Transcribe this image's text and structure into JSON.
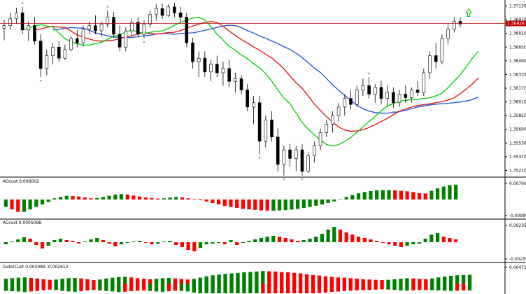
{
  "colors": {
    "bull": "#ffffff",
    "bear": "#000000",
    "jaw": "#1f4fe0",
    "teeth": "#e01010",
    "lips": "#00d000",
    "hist_up": "#008000",
    "hist_down": "#ff0000",
    "price_line": "#c00000",
    "fractal": "#a0a0a0",
    "signal": "#00c000"
  },
  "chart_data": [
    {
      "type": "candlestick",
      "title": "",
      "yaxis_ticks": [
        "1.37130",
        "1.36970",
        "1.36810",
        "1.36650",
        "1.36490",
        "1.36330",
        "1.36170",
        "1.36010",
        "1.35850",
        "1.35690",
        "1.35530",
        "1.35370",
        "1.35210"
      ],
      "ylim": [
        1.3514,
        1.372
      ],
      "current_price": "1.36926",
      "current_price_value": 1.36926,
      "candles": [
        [
          1.3687,
          1.3697,
          1.3673,
          1.369
        ],
        [
          1.369,
          1.3705,
          1.3685,
          1.3698
        ],
        [
          1.3698,
          1.3711,
          1.3692,
          1.3705
        ],
        [
          1.3705,
          1.3712,
          1.368,
          1.3685
        ],
        [
          1.3685,
          1.3695,
          1.3672,
          1.369
        ],
        [
          1.369,
          1.37,
          1.3668,
          1.3672
        ],
        [
          1.3672,
          1.368,
          1.363,
          1.364
        ],
        [
          1.364,
          1.3662,
          1.3632,
          1.3655
        ],
        [
          1.3655,
          1.367,
          1.3645,
          1.3665
        ],
        [
          1.3665,
          1.3672,
          1.3648,
          1.3652
        ],
        [
          1.3652,
          1.3668,
          1.365,
          1.3662
        ],
        [
          1.3662,
          1.3678,
          1.366,
          1.3675
        ],
        [
          1.3675,
          1.3685,
          1.3665,
          1.367
        ],
        [
          1.367,
          1.369,
          1.3666,
          1.3686
        ],
        [
          1.3686,
          1.3695,
          1.368,
          1.369
        ],
        [
          1.369,
          1.3702,
          1.368,
          1.3684
        ],
        [
          1.3684,
          1.3695,
          1.3677,
          1.3692
        ],
        [
          1.3692,
          1.3708,
          1.3688,
          1.37
        ],
        [
          1.37,
          1.3706,
          1.3676,
          1.368
        ],
        [
          1.368,
          1.369,
          1.366,
          1.3665
        ],
        [
          1.3665,
          1.3688,
          1.366,
          1.3684
        ],
        [
          1.3684,
          1.3698,
          1.3678,
          1.3694
        ],
        [
          1.3694,
          1.37,
          1.3676,
          1.368
        ],
        [
          1.368,
          1.3696,
          1.3675,
          1.3692
        ],
        [
          1.3692,
          1.3708,
          1.3688,
          1.3703
        ],
        [
          1.3703,
          1.3715,
          1.3696,
          1.371
        ],
        [
          1.371,
          1.3716,
          1.3698,
          1.3702
        ],
        [
          1.3702,
          1.3715,
          1.37,
          1.3712
        ],
        [
          1.3712,
          1.3717,
          1.37,
          1.3705
        ],
        [
          1.3705,
          1.3712,
          1.3694,
          1.37
        ],
        [
          1.37,
          1.3705,
          1.3665,
          1.367
        ],
        [
          1.367,
          1.3676,
          1.364,
          1.3648
        ],
        [
          1.3648,
          1.366,
          1.363,
          1.3652
        ],
        [
          1.3652,
          1.366,
          1.363,
          1.3636
        ],
        [
          1.3636,
          1.365,
          1.3625,
          1.3645
        ],
        [
          1.3645,
          1.3655,
          1.363,
          1.3635
        ],
        [
          1.3635,
          1.3648,
          1.362,
          1.364
        ],
        [
          1.364,
          1.365,
          1.3618,
          1.3625
        ],
        [
          1.3625,
          1.3635,
          1.3612,
          1.3628
        ],
        [
          1.3628,
          1.3632,
          1.361,
          1.3615
        ],
        [
          1.3615,
          1.3622,
          1.359,
          1.3595
        ],
        [
          1.3595,
          1.3608,
          1.3575,
          1.36
        ],
        [
          1.36,
          1.3608,
          1.354,
          1.3555
        ],
        [
          1.3555,
          1.3585,
          1.3548,
          1.358
        ],
        [
          1.358,
          1.359,
          1.3555,
          1.356
        ],
        [
          1.356,
          1.357,
          1.352,
          1.3528
        ],
        [
          1.3528,
          1.355,
          1.3515,
          1.3545
        ],
        [
          1.3545,
          1.3552,
          1.3525,
          1.3535
        ],
        [
          1.3535,
          1.355,
          1.352,
          1.3545
        ],
        [
          1.3545,
          1.3552,
          1.3515,
          1.352
        ],
        [
          1.352,
          1.3542,
          1.3518,
          1.3538
        ],
        [
          1.3538,
          1.3555,
          1.353,
          1.355
        ],
        [
          1.355,
          1.357,
          1.3545,
          1.3565
        ],
        [
          1.3565,
          1.358,
          1.356,
          1.3575
        ],
        [
          1.3575,
          1.359,
          1.3565,
          1.3585
        ],
        [
          1.3585,
          1.36,
          1.3578,
          1.3595
        ],
        [
          1.3595,
          1.361,
          1.3585,
          1.3605
        ],
        [
          1.3605,
          1.3615,
          1.3592,
          1.3598
        ],
        [
          1.3598,
          1.362,
          1.3595,
          1.3615
        ],
        [
          1.3615,
          1.3628,
          1.3608,
          1.362
        ],
        [
          1.362,
          1.363,
          1.3605,
          1.361
        ],
        [
          1.361,
          1.3622,
          1.36,
          1.3618
        ],
        [
          1.3618,
          1.3626,
          1.3598,
          1.3605
        ],
        [
          1.3605,
          1.362,
          1.3596,
          1.3612
        ],
        [
          1.3612,
          1.3618,
          1.3594,
          1.36
        ],
        [
          1.36,
          1.3615,
          1.3595,
          1.361
        ],
        [
          1.361,
          1.362,
          1.36,
          1.3606
        ],
        [
          1.3606,
          1.3618,
          1.36,
          1.3615
        ],
        [
          1.3615,
          1.3625,
          1.3608,
          1.3612
        ],
        [
          1.3612,
          1.364,
          1.3608,
          1.3635
        ],
        [
          1.3635,
          1.366,
          1.3628,
          1.3655
        ],
        [
          1.3655,
          1.367,
          1.364,
          1.3648
        ],
        [
          1.3648,
          1.368,
          1.3645,
          1.3675
        ],
        [
          1.3675,
          1.3692,
          1.3668,
          1.3686
        ],
        [
          1.3686,
          1.37,
          1.3682,
          1.3695
        ],
        [
          1.3695,
          1.37,
          1.3688,
          1.3692
        ]
      ],
      "fractals": "grey up/down arrows at swing highs and lows",
      "signal": "green up-arrow after the last candle"
    },
    {
      "type": "bar",
      "title": "AOcust 0.006002",
      "yaxis_ticks": [
        "0.007609",
        "-0.009994"
      ],
      "colors": "green = rising, red = falling",
      "values": [
        -3,
        -4,
        -5,
        -5,
        -4,
        -3,
        -2,
        -1,
        0.5,
        1,
        1.5,
        1.4,
        1.2,
        0.8,
        0.5,
        0.6,
        1.0,
        1.5,
        2.0,
        2.2,
        2.0,
        1.6,
        1.2,
        0.8,
        0.6,
        0.4,
        0.5,
        0.8,
        1.0,
        0.8,
        0.5,
        0.2,
        -0.3,
        -0.8,
        -1.4,
        -2.0,
        -2.6,
        -3.0,
        -3.4,
        -3.8,
        -4.0,
        -4.2,
        -4.4,
        -4.5,
        -4.5,
        -4.4,
        -4.3,
        -4.1,
        -3.8,
        -3.4,
        -3.0,
        -2.5,
        -2.0,
        -1.4,
        -0.8,
        0.2,
        1.0,
        1.8,
        2.5,
        3.0,
        3.4,
        3.7,
        3.8,
        3.8,
        3.7,
        3.5,
        3.3,
        3.0,
        2.6,
        2.4,
        3.5,
        4.5,
        5.2,
        5.8,
        6.0
      ]
    },
    {
      "type": "bar",
      "title": "ACcust 0.0005098",
      "yaxis_ticks": [
        "0.0023537",
        "-0.0025062"
      ],
      "colors": "green = rising, red = falling",
      "values": [
        -0.3,
        0.1,
        0.4,
        0.7,
        0.5,
        -0.4,
        -0.9,
        -0.5,
        0.3,
        0.5,
        0.3,
        0.2,
        -0.2,
        0.1,
        0.4,
        0.6,
        0.3,
        -0.2,
        -0.6,
        -0.3,
        -0.1,
        0.1,
        0.2,
        -0.1,
        -0.3,
        -0.2,
        0.1,
        0.2,
        -0.4,
        -0.7,
        -1.1,
        -1.3,
        -0.8,
        -0.3,
        -0.2,
        -0.1,
        -0.3,
        0.3,
        -0.4,
        -0.1,
        0.2,
        0.4,
        0.6,
        0.8,
        0.9,
        0.8,
        0.6,
        0.4,
        0.2,
        0.3,
        0.5,
        0.8,
        1.2,
        1.8,
        2.2,
        1.8,
        1.4,
        1.1,
        0.8,
        0.6,
        0.4,
        0.2,
        -0.1,
        -0.3,
        -0.5,
        -0.7,
        -0.5,
        -0.3,
        -0.2,
        0.5,
        1.1,
        1.3,
        0.8,
        0.6,
        0.4
      ]
    },
    {
      "type": "bar",
      "title": "GatorCust 0.003089 -0.002612",
      "yaxis_ticks": [
        "0.004712"
      ],
      "colors": "green = rising, red = falling",
      "upper": [
        1.8,
        2.0,
        2.2,
        2.3,
        2.1,
        1.9,
        1.6,
        1.4,
        1.5,
        1.8,
        2.0,
        2.1,
        1.9,
        1.6,
        1.3,
        1.5,
        1.9,
        2.2,
        2.4,
        2.5,
        2.3,
        2.0,
        1.8,
        1.6,
        1.8,
        2.0,
        2.1,
        1.9,
        1.7,
        1.5,
        1.7,
        2.2,
        2.7,
        3.1,
        3.4,
        3.6,
        3.8,
        4.0,
        4.2,
        4.3,
        4.5,
        4.7,
        4.6,
        4.5,
        4.3,
        4.2,
        4.0,
        3.8,
        3.5,
        3.2,
        3.0,
        2.7,
        2.5,
        2.3,
        2.2,
        2.0,
        1.8,
        1.6,
        1.5,
        1.4,
        1.3,
        1.4,
        1.6,
        1.8,
        2.0,
        1.9,
        1.7,
        1.6,
        1.9,
        2.3,
        2.6,
        2.9,
        3.1,
        3.2,
        3.3
      ],
      "lower": [
        -2.8,
        -2.9,
        -3.0,
        -3.2,
        -3.0,
        -2.8,
        -2.5,
        -2.3,
        -2.5,
        -2.8,
        -3.0,
        -3.1,
        -2.9,
        -2.6,
        -2.4,
        -2.6,
        -2.8,
        -3.0,
        -3.2,
        -3.1,
        -2.9,
        -2.7,
        -2.6,
        -2.8,
        -3.0,
        -3.1,
        -2.9,
        -2.7,
        -2.8,
        -3.0,
        -3.4,
        -3.8,
        -4.0,
        -4.2,
        -4.4,
        -4.5,
        -4.6,
        -4.7,
        -4.8,
        -4.8,
        -4.9,
        -4.8,
        -4.7,
        -4.6,
        -4.5,
        -4.4,
        -4.3,
        -4.2,
        -4.0,
        -3.8,
        -3.6,
        -3.4,
        -3.2,
        -3.0,
        -2.8,
        -2.7,
        -2.6,
        -2.5,
        -2.4,
        -2.3,
        -2.2,
        -2.3,
        -2.4,
        -2.6,
        -2.7,
        -2.6,
        -2.5,
        -2.4,
        -2.5,
        -2.6,
        -2.7,
        -2.8,
        -2.7,
        -2.6,
        -2.6
      ]
    }
  ]
}
